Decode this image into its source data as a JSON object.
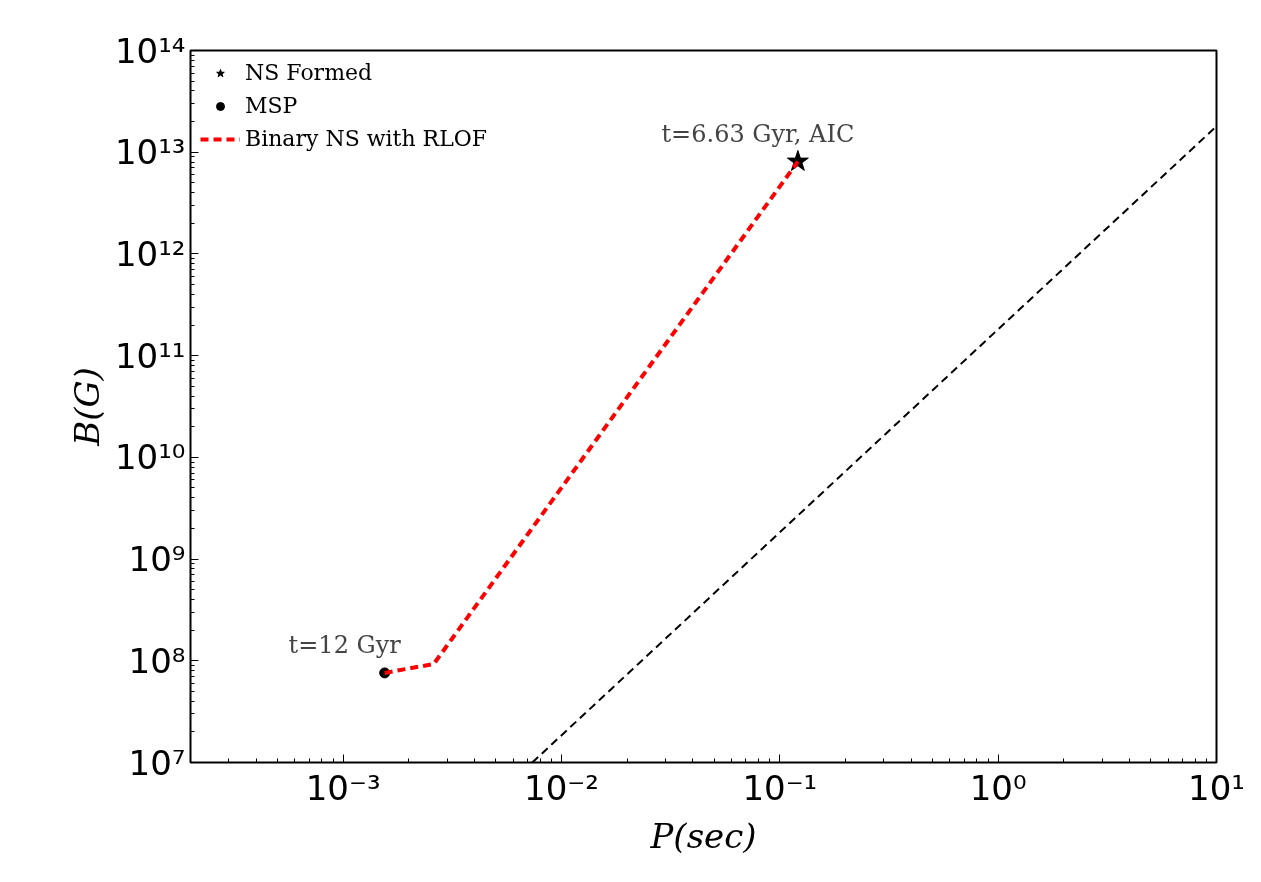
{
  "chart_data": {
    "type": "line",
    "xlabel": "P(sec)",
    "ylabel": "B(G)",
    "log": "xy",
    "grid": false,
    "legend": "top left",
    "xlim": [
      0.0002,
      10
    ],
    "ylim": [
      10000000.0,
      100000000000000.0
    ],
    "xticks": [
      {
        "value": 0.001,
        "label": "10⁻³"
      },
      {
        "value": 0.01,
        "label": "10⁻²"
      },
      {
        "value": 0.1,
        "label": "10⁻¹"
      },
      {
        "value": 1,
        "label": "10⁰"
      },
      {
        "value": 10,
        "label": "10¹"
      }
    ],
    "yticks": [
      {
        "value": 10000000.0,
        "label": "10⁷"
      },
      {
        "value": 100000000.0,
        "label": "10⁸"
      },
      {
        "value": 1000000000.0,
        "label": "10⁹"
      },
      {
        "value": 10000000000.0,
        "label": "10¹⁰"
      },
      {
        "value": 100000000000.0,
        "label": "10¹¹"
      },
      {
        "value": 1000000000000.0,
        "label": "10¹²"
      },
      {
        "value": 10000000000000.0,
        "label": "10¹³"
      },
      {
        "value": 100000000000000.0,
        "label": "10¹⁴"
      }
    ],
    "series": [
      {
        "name": "NS Formed",
        "type": "scatter",
        "marker": "star",
        "color": "#000000",
        "x": [
          0.121
        ],
        "values": [
          8100000000000.0
        ]
      },
      {
        "name": "MSP",
        "type": "scatter",
        "marker": "circle",
        "color": "#000000",
        "x": [
          0.00155
        ],
        "values": [
          76000000.0
        ]
      },
      {
        "name": "Binary NS with RLOF",
        "line_style": "dashed",
        "color": "#ff0000",
        "x": [
          0.00155,
          0.0026,
          0.121
        ],
        "values": [
          76000000.0,
          93000000.0,
          8100000000000.0
        ]
      },
      {
        "line_style": "dashed",
        "color": "#000000",
        "x": [
          0.00735,
          10
        ],
        "values": [
          10000000.0,
          18000000000000.0
        ]
      }
    ],
    "annotations": [
      {
        "text": "t=6.63 Gyr, AIC",
        "x": 0.121,
        "y": 8100000000000.0
      },
      {
        "text": "t=12 Gyr",
        "x": 0.00155,
        "y": 76000000.0
      }
    ]
  }
}
